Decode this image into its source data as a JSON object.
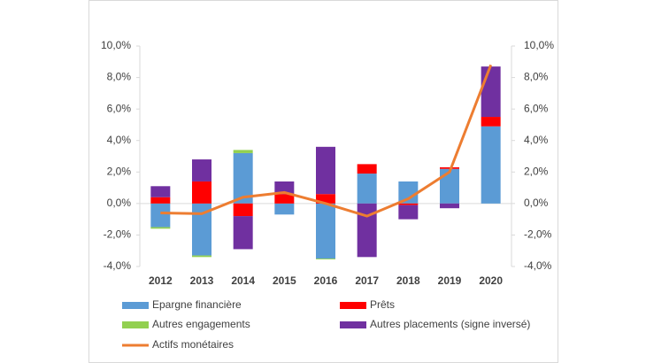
{
  "chart_data": {
    "type": "bar",
    "categories": [
      "2012",
      "2013",
      "2014",
      "2015",
      "2016",
      "2017",
      "2018",
      "2019",
      "2020"
    ],
    "series": [
      {
        "name": "Epargne financière",
        "color": "#5b9bd5",
        "values": [
          -1.5,
          -3.3,
          3.2,
          -0.7,
          -3.5,
          1.9,
          1.4,
          2.2,
          4.9
        ]
      },
      {
        "name": "Prêts",
        "color": "#ff0000",
        "values": [
          0.4,
          1.4,
          -0.8,
          0.6,
          0.6,
          0.6,
          -0.1,
          0.1,
          0.6
        ]
      },
      {
        "name": "Autres engagements",
        "color": "#92d050",
        "values": [
          -0.1,
          -0.1,
          0.2,
          0,
          -0.05,
          0,
          0,
          0,
          0
        ]
      },
      {
        "name": "Autres placements (signe inversé)",
        "color": "#7030a0",
        "values": [
          0.7,
          1.4,
          -2.1,
          0.8,
          3.0,
          -3.4,
          -0.9,
          -0.3,
          3.2
        ]
      },
      {
        "name": "Actifs monétaires",
        "color": "#ed7d31",
        "type": "line",
        "axis": "y2",
        "values": [
          -0.6,
          -0.65,
          0.4,
          0.7,
          0.0,
          -0.8,
          0.3,
          2.0,
          8.8
        ]
      }
    ],
    "ylim": [
      -4,
      10
    ],
    "yticks": [
      {
        "value": -4,
        "label": "-4,0%"
      },
      {
        "value": -2,
        "label": "-2,0%"
      },
      {
        "value": 0,
        "label": "0,0%"
      },
      {
        "value": 2,
        "label": "2,0%"
      },
      {
        "value": 4,
        "label": "4,0%"
      },
      {
        "value": 6,
        "label": "6,0%"
      },
      {
        "value": 8,
        "label": "8,0%"
      },
      {
        "value": 10,
        "label": "10,0%"
      }
    ],
    "y2lim": [
      -4,
      10
    ],
    "y2ticks": [
      {
        "value": -4,
        "label": "-4,0%"
      },
      {
        "value": -2,
        "label": "-2,0%"
      },
      {
        "value": 0,
        "label": "0,0%"
      },
      {
        "value": 2,
        "label": "2,0%"
      },
      {
        "value": 4,
        "label": "4,0%"
      },
      {
        "value": 6,
        "label": "6,0%"
      },
      {
        "value": 8,
        "label": "8,0%"
      },
      {
        "value": 10,
        "label": "10,0%"
      }
    ]
  }
}
